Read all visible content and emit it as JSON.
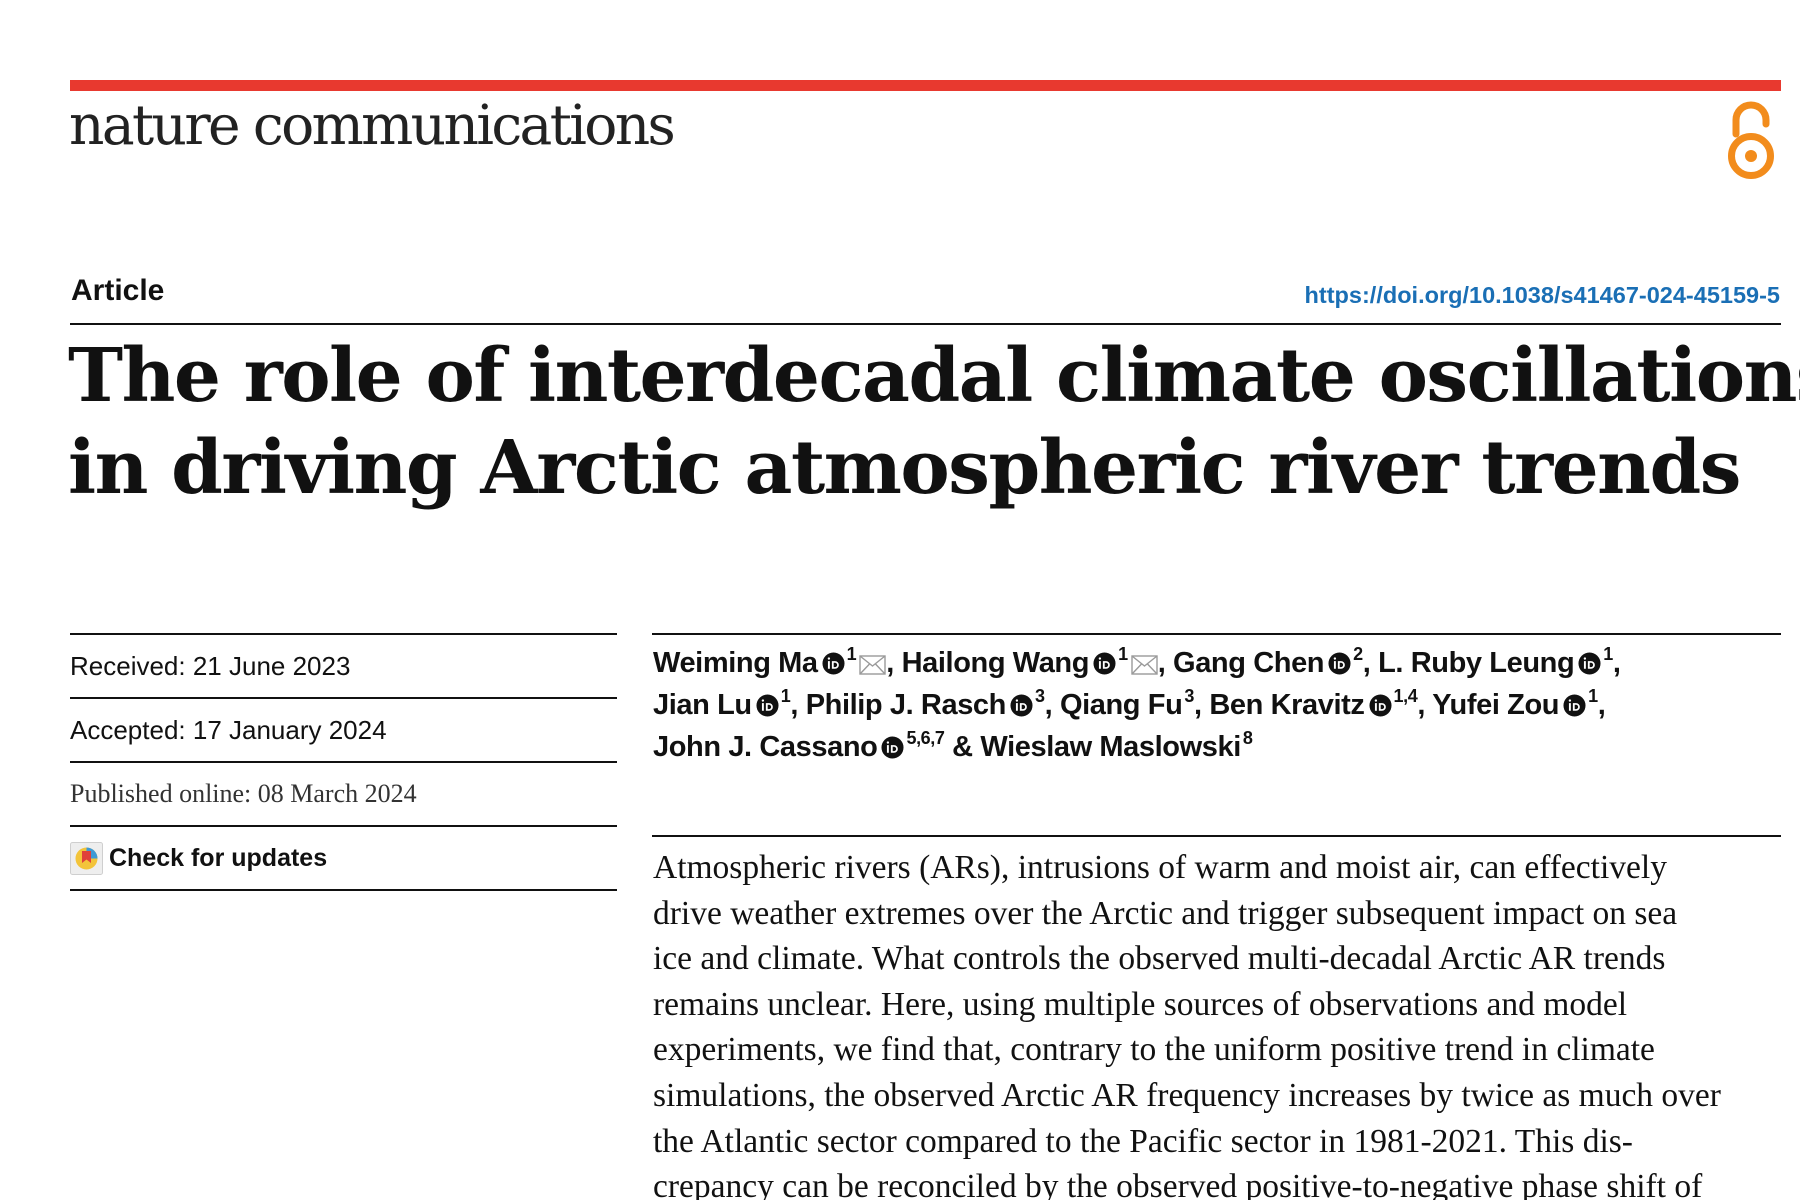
{
  "header": {
    "journal_name": "nature communications",
    "open_access_icon": "open-access-lock-icon",
    "accent_color": "#e8392f",
    "oa_color": "#f28c1c"
  },
  "article": {
    "type": "Article",
    "doi": "https://doi.org/10.1038/s41467-024-45159-5",
    "doi_color": "#1a6fb5",
    "title_lines": [
      "The role of interdecadal climate oscillations",
      "in driving Arctic atmospheric river trends"
    ]
  },
  "meta": {
    "received": "Received: 21 June 2023",
    "accepted": "Accepted: 17 January 2024",
    "published": "Published online: 08 March 2024",
    "check_updates": "Check for updates"
  },
  "authors": [
    {
      "name": "Weiming Ma",
      "aff": "1",
      "orcid": true,
      "email": true,
      "sep": ","
    },
    {
      "name": "Hailong Wang",
      "aff": "1",
      "orcid": true,
      "email": true,
      "sep": ","
    },
    {
      "name": "Gang Chen",
      "aff": "2",
      "orcid": true,
      "email": false,
      "sep": ","
    },
    {
      "name": "L. Ruby Leung",
      "aff": "1",
      "orcid": true,
      "email": false,
      "sep": ","
    },
    {
      "name": "Jian Lu",
      "aff": "1",
      "orcid": true,
      "email": false,
      "sep": ","
    },
    {
      "name": "Philip J. Rasch",
      "aff": "3",
      "orcid": true,
      "email": false,
      "sep": ","
    },
    {
      "name": "Qiang Fu",
      "aff": "3",
      "orcid": false,
      "email": false,
      "sep": ","
    },
    {
      "name": "Ben Kravitz",
      "aff": "1,4",
      "orcid": true,
      "email": false,
      "sep": ","
    },
    {
      "name": "Yufei Zou",
      "aff": "1",
      "orcid": true,
      "email": false,
      "sep": ","
    },
    {
      "name": "John J. Cassano",
      "aff": "5,6,7",
      "orcid": true,
      "email": false,
      "sep": " &"
    },
    {
      "name": "Wieslaw Maslowski",
      "aff": "8",
      "orcid": false,
      "email": false,
      "sep": ""
    }
  ],
  "abstract_lines": [
    "Atmospheric rivers (ARs), intrusions of warm and moist air, can effectively",
    "drive weather extremes over the Arctic and trigger subsequent impact on sea",
    "ice and climate. What controls the observed multi-decadal Arctic AR trends",
    "remains unclear. Here, using multiple sources of observations and model",
    "experiments, we find that, contrary to the uniform positive trend in climate",
    "simulations, the observed Arctic AR frequency increases by twice as much over",
    "the Atlantic sector compared to the Pacific sector in 1981-2021. This dis-",
    "crepancy can be reconciled by the observed positive-to-negative phase shift of"
  ]
}
